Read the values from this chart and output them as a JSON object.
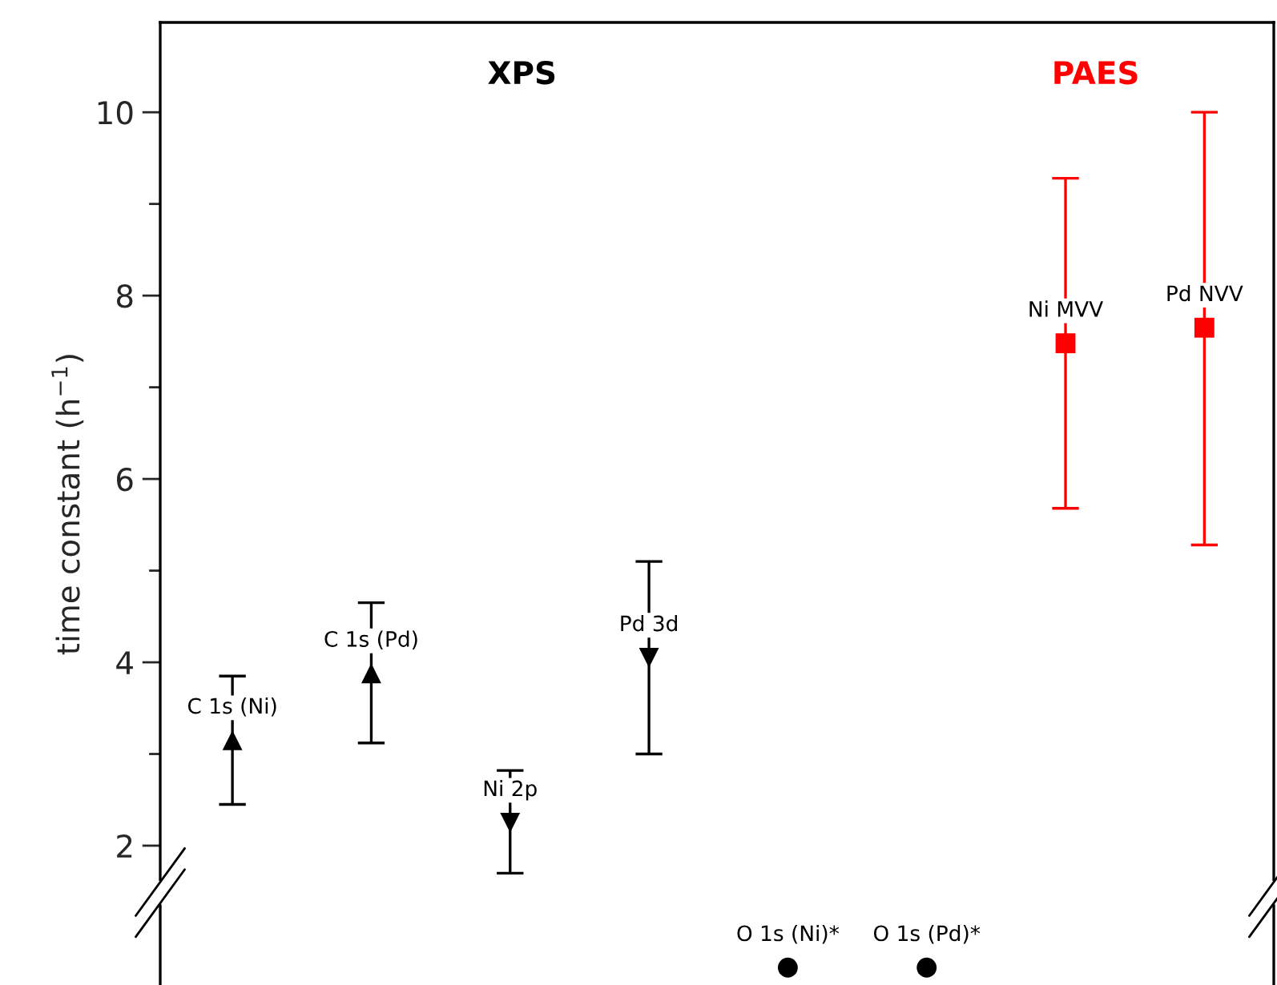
{
  "chart_data": {
    "type": "scatter",
    "ylabel": "time constant (h$^{−1}$)",
    "categories": [
      null,
      null,
      null,
      null,
      null,
      null,
      null,
      null
    ],
    "series": [
      {
        "name": "C 1s (Ni)",
        "color": "#000000",
        "marker": "triangle",
        "values": [
          3.15,
          null,
          null,
          null,
          null,
          null,
          null,
          null
        ],
        "errors": [
          [
            2.45,
            3.85
          ],
          null,
          null,
          null,
          null,
          null,
          null,
          null
        ]
      },
      {
        "name": "C 1s (Pd)",
        "color": "#000000",
        "marker": "triangle",
        "values": [
          null,
          3.88,
          null,
          null,
          null,
          null,
          null,
          null
        ],
        "errors": [
          null,
          [
            3.12,
            4.65
          ],
          null,
          null,
          null,
          null,
          null,
          null
        ]
      },
      {
        "name": "Ni 2p",
        "color": "#000000",
        "marker": "triangle-down",
        "values": [
          null,
          null,
          2.25,
          null,
          null,
          null,
          null,
          null
        ],
        "errors": [
          null,
          null,
          [
            1.7,
            2.82
          ],
          null,
          null,
          null,
          null,
          null
        ]
      },
      {
        "name": "Pd 3d",
        "color": "#000000",
        "marker": "triangle-down",
        "values": [
          null,
          null,
          null,
          4.05,
          null,
          null,
          null,
          null
        ],
        "errors": [
          null,
          null,
          null,
          [
            3.0,
            5.1
          ],
          null,
          null,
          null,
          null
        ]
      },
      {
        "name": "O 1s (Ni)*",
        "color": "#000000",
        "marker": "circle",
        "values": [
          null,
          null,
          null,
          null,
          0.67,
          null,
          null,
          null
        ]
      },
      {
        "name": "O 1s (Pd)*",
        "color": "#000000",
        "marker": "circle",
        "values": [
          null,
          null,
          null,
          null,
          null,
          0.67,
          null,
          null
        ]
      },
      {
        "name": "Ni MVV",
        "color": "#ff0000",
        "marker": "square",
        "values": [
          null,
          null,
          null,
          null,
          null,
          null,
          7.48,
          null
        ],
        "errors": [
          null,
          null,
          null,
          null,
          null,
          null,
          [
            5.68,
            9.28
          ],
          null
        ]
      },
      {
        "name": "Pd NVV",
        "color": "#ff0000",
        "marker": "square",
        "values": [
          null,
          null,
          null,
          null,
          null,
          null,
          null,
          7.65
        ],
        "errors": [
          null,
          null,
          null,
          null,
          null,
          null,
          null,
          [
            5.28,
            10.0
          ]
        ]
      }
    ],
    "annotations": [
      "XPS",
      "PAES"
    ],
    "ylim": [
      0.48,
      10.98
    ],
    "yticks": [
      2,
      {
        "value": 3,
        "label": null
      },
      4,
      {
        "value": 5,
        "label": null
      },
      6,
      {
        "value": 7,
        "label": null
      },
      8,
      {
        "value": 9,
        "label": null
      },
      10
    ],
    "tick_labels": "y",
    "grid": false,
    "legend": false
  }
}
